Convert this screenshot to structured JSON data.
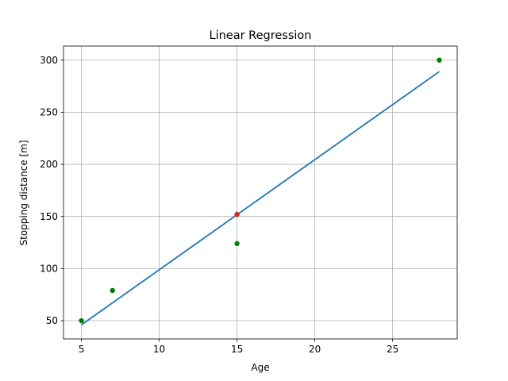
{
  "chart_data": {
    "type": "scatter",
    "title": "Linear Regression",
    "xlabel": "Age",
    "ylabel": "Stopping distance [m]",
    "xlim": [
      3.85,
      29.15
    ],
    "ylim": [
      32.5,
      313.5
    ],
    "xticks": [
      5,
      10,
      15,
      20,
      25
    ],
    "yticks": [
      50,
      100,
      150,
      200,
      250,
      300
    ],
    "grid": true,
    "series": [
      {
        "kind": "scatter",
        "color": "#008000",
        "x": [
          5,
          7,
          15,
          15,
          28
        ],
        "y": [
          50,
          79,
          124,
          152,
          300
        ]
      },
      {
        "kind": "line",
        "color": "#1f77b4",
        "x": [
          5,
          28
        ],
        "y": [
          46,
          289
        ]
      },
      {
        "kind": "scatter",
        "color": "#d62728",
        "x": [
          15
        ],
        "y": [
          152
        ]
      }
    ]
  }
}
